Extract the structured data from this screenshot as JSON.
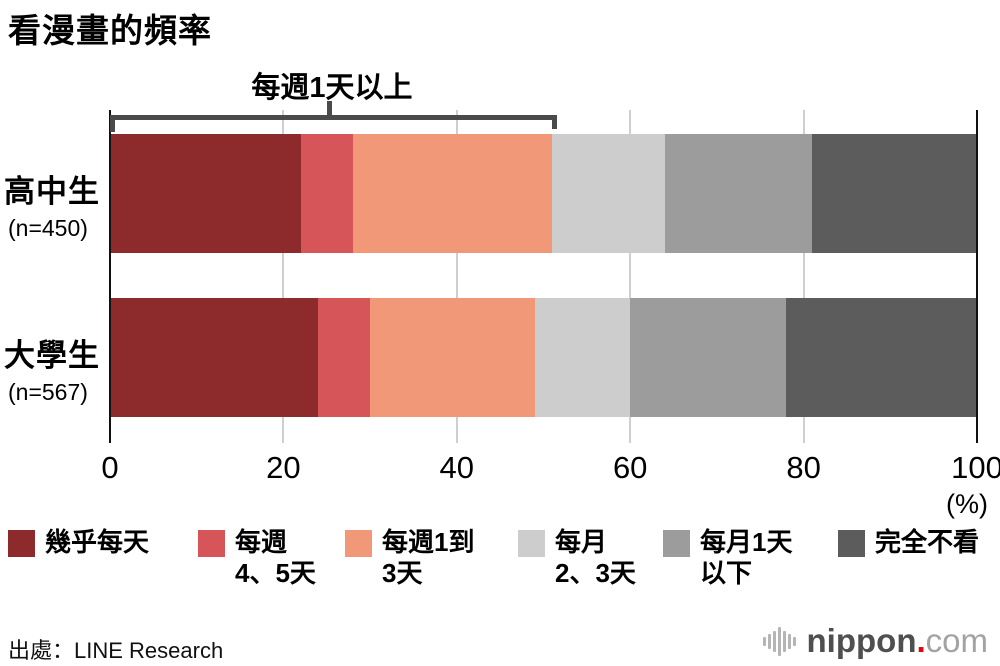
{
  "source": {
    "label": "出處：LINE Research"
  },
  "logo": {
    "text_main": "nippon",
    "dot": ".",
    "text_suffix": "com",
    "dot_color": "#e60012"
  },
  "chart_data": {
    "type": "stacked-bar-horizontal",
    "title": "看漫畫的頻率",
    "unit": "(%)",
    "annotation": {
      "label": "每週1天以上",
      "covers_series": [
        "幾乎每天",
        "每週4、5天",
        "每週1到3天"
      ],
      "range_pct": [
        0,
        51.5
      ]
    },
    "categories": [
      {
        "label": "高中生",
        "n_label": "(n=450)"
      },
      {
        "label": "大學生",
        "n_label": "(n=567)"
      }
    ],
    "series": [
      {
        "name": "幾乎每天",
        "color": "#8c2a2c",
        "values": [
          22,
          24
        ]
      },
      {
        "name": "每週4、5天",
        "color": "#d55559",
        "values": [
          6,
          6
        ]
      },
      {
        "name": "每週1到3天",
        "color": "#f09878",
        "values": [
          23,
          19
        ]
      },
      {
        "name": "每月2、3天",
        "color": "#cdcdcd",
        "values": [
          13,
          11
        ]
      },
      {
        "name": "每月1天以下",
        "color": "#9c9c9c",
        "values": [
          17,
          18
        ]
      },
      {
        "name": "完全不看",
        "color": "#5c5c5c",
        "values": [
          19,
          22
        ]
      }
    ],
    "legend_lines": [
      [
        "幾乎每天"
      ],
      [
        "每週",
        "4、5天"
      ],
      [
        "每週1到",
        "3天"
      ],
      [
        "每月",
        "2、3天"
      ],
      [
        "每月1天",
        "以下"
      ],
      [
        "完全不看"
      ]
    ],
    "x_axis": {
      "range": [
        0,
        100
      ],
      "ticks": [
        0,
        20,
        40,
        60,
        80,
        100
      ]
    },
    "grid": "vertical-lines"
  }
}
